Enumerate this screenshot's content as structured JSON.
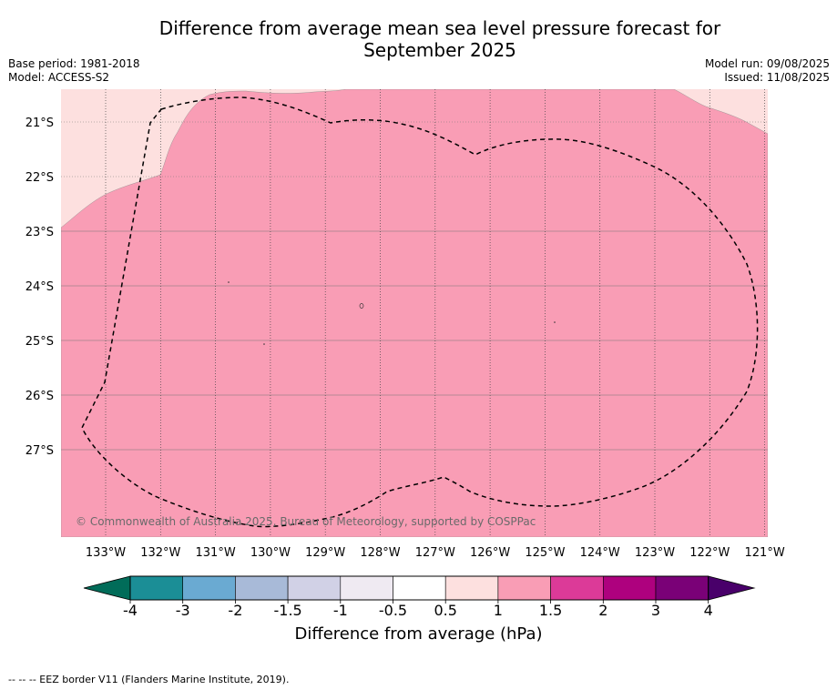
{
  "title_line1": "Difference from average mean sea level pressure forecast for",
  "title_line2": "September 2025",
  "base_period": "Base period: 1981-2018",
  "model": "Model: ACCESS-S2",
  "model_run": "Model run: 09/08/2025",
  "issued": "Issued: 11/08/2025",
  "lat_labels": [
    "21°S",
    "22°S",
    "23°S",
    "24°S",
    "25°S",
    "26°S",
    "27°S"
  ],
  "lon_labels": [
    "133°W",
    "132°W",
    "131°W",
    "130°W",
    "129°W",
    "128°W",
    "127°W",
    "126°W",
    "125°W",
    "124°W",
    "123°W",
    "122°W",
    "121°W"
  ],
  "copyright": "© Commonwealth of Australia 2025, Bureau of Meteorology, supported by COSPPac",
  "colorbar": {
    "ticks": [
      "-4",
      "-3",
      "-2",
      "-1.5",
      "-1",
      "-0.5",
      "0.5",
      "1",
      "1.5",
      "2",
      "3",
      "4"
    ],
    "colors": [
      "#1b8e96",
      "#6aaad2",
      "#a8bad8",
      "#d1d1e6",
      "#efeaf2",
      "#ffffff",
      "#fde0df",
      "#f99db5",
      "#dc3a98",
      "#ae017e",
      "#7a0177"
    ],
    "under_color": "#016c59",
    "over_color": "#49006a",
    "label": "Difference from average (hPa)"
  },
  "map_colors": {
    "light_pink": "#fde0df",
    "pink": "#f99db5"
  },
  "eez_note": "--  --  -- EEZ border V11 (Flanders Marine Institute, 2019)."
}
